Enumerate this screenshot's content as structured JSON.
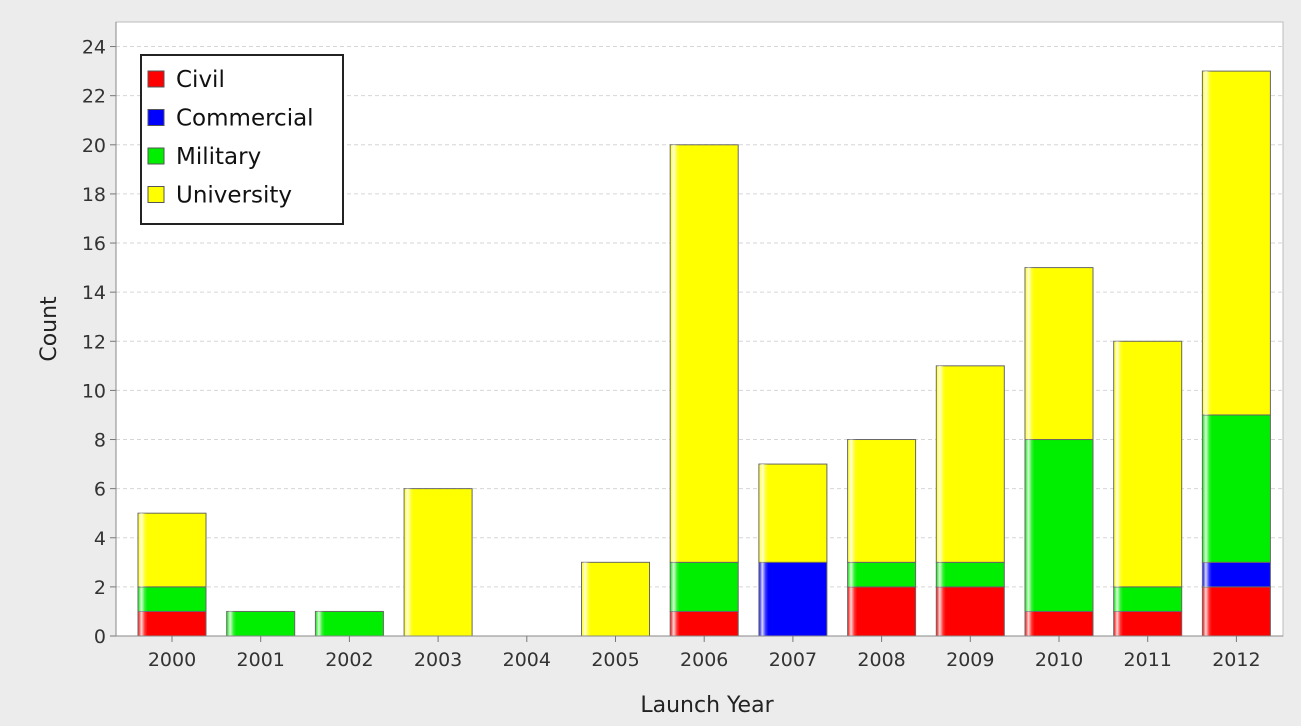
{
  "chart_data": {
    "type": "bar",
    "stacked": true,
    "title": "",
    "xlabel": "Launch Year",
    "ylabel": "Count",
    "categories": [
      "2000",
      "2001",
      "2002",
      "2003",
      "2004",
      "2005",
      "2006",
      "2007",
      "2008",
      "2009",
      "2010",
      "2011",
      "2012"
    ],
    "series": [
      {
        "name": "Civil",
        "color": "#ff0000",
        "values": [
          1,
          0,
          0,
          0,
          0,
          0,
          1,
          0,
          2,
          2,
          1,
          1,
          2
        ]
      },
      {
        "name": "Commercial",
        "color": "#0000ff",
        "values": [
          0,
          0,
          0,
          0,
          0,
          0,
          0,
          3,
          0,
          0,
          0,
          0,
          1
        ]
      },
      {
        "name": "Military",
        "color": "#00ee00",
        "values": [
          1,
          1,
          1,
          0,
          0,
          0,
          2,
          0,
          1,
          1,
          7,
          1,
          6
        ]
      },
      {
        "name": "University",
        "color": "#ffff00",
        "values": [
          3,
          0,
          0,
          6,
          0,
          3,
          17,
          4,
          5,
          8,
          7,
          10,
          14
        ]
      }
    ],
    "ylim": [
      0,
      25
    ],
    "yticks": [
      0,
      2,
      4,
      6,
      8,
      10,
      12,
      14,
      16,
      18,
      20,
      22,
      24
    ],
    "grid": true,
    "legend_position": "top-left"
  }
}
